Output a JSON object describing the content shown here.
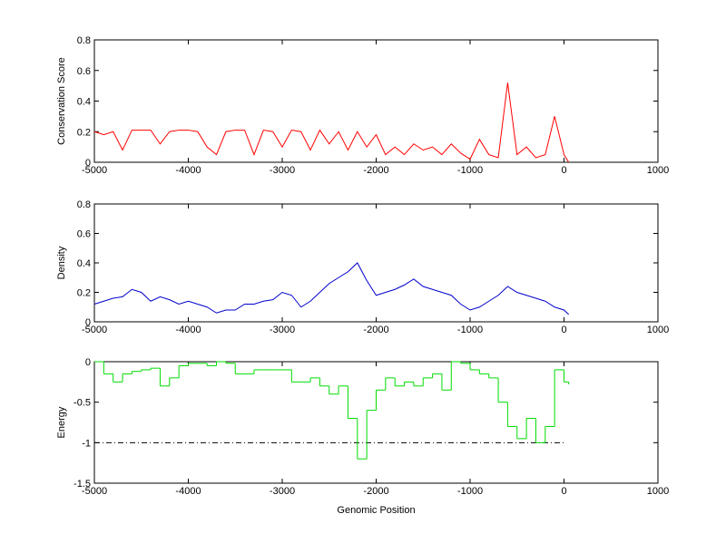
{
  "chart_data": [
    {
      "type": "line",
      "ylabel": "Conservation Score",
      "color": "#ff0000",
      "step": false,
      "x": [
        -5000,
        -4900,
        -4800,
        -4700,
        -4600,
        -4500,
        -4400,
        -4300,
        -4200,
        -4100,
        -4000,
        -3900,
        -3800,
        -3700,
        -3600,
        -3500,
        -3400,
        -3300,
        -3200,
        -3100,
        -3000,
        -2900,
        -2800,
        -2700,
        -2600,
        -2500,
        -2400,
        -2300,
        -2200,
        -2100,
        -2000,
        -1900,
        -1800,
        -1700,
        -1600,
        -1500,
        -1400,
        -1300,
        -1200,
        -1100,
        -1000,
        -900,
        -800,
        -700,
        -600,
        -500,
        -400,
        -300,
        -200,
        -100,
        0,
        50
      ],
      "values": [
        0.2,
        0.18,
        0.2,
        0.08,
        0.21,
        0.21,
        0.21,
        0.12,
        0.2,
        0.21,
        0.21,
        0.2,
        0.1,
        0.05,
        0.2,
        0.21,
        0.21,
        0.05,
        0.21,
        0.2,
        0.1,
        0.21,
        0.2,
        0.08,
        0.21,
        0.12,
        0.2,
        0.08,
        0.2,
        0.1,
        0.18,
        0.05,
        0.1,
        0.05,
        0.12,
        0.08,
        0.1,
        0.05,
        0.12,
        0.06,
        0.02,
        0.15,
        0.05,
        0.03,
        0.52,
        0.05,
        0.1,
        0.03,
        0.05,
        0.3,
        0.05,
        0
      ],
      "xlim": [
        -5000,
        1000
      ],
      "xticks": [
        -5000,
        -4000,
        -3000,
        -2000,
        -1000,
        0,
        1000
      ],
      "ylim": [
        0,
        0.8
      ],
      "yticks": [
        0,
        0.2,
        0.4,
        0.6,
        0.8
      ]
    },
    {
      "type": "line",
      "ylabel": "Density",
      "color": "#0000cc",
      "step": false,
      "x": [
        -5000,
        -4900,
        -4800,
        -4700,
        -4600,
        -4500,
        -4400,
        -4300,
        -4200,
        -4100,
        -4000,
        -3900,
        -3800,
        -3700,
        -3600,
        -3500,
        -3400,
        -3300,
        -3200,
        -3100,
        -3000,
        -2900,
        -2800,
        -2700,
        -2600,
        -2500,
        -2400,
        -2300,
        -2200,
        -2100,
        -2000,
        -1900,
        -1800,
        -1700,
        -1600,
        -1500,
        -1400,
        -1300,
        -1200,
        -1100,
        -1000,
        -900,
        -800,
        -700,
        -600,
        -500,
        -400,
        -300,
        -200,
        -100,
        0,
        50
      ],
      "values": [
        0.12,
        0.14,
        0.16,
        0.17,
        0.22,
        0.2,
        0.14,
        0.17,
        0.15,
        0.12,
        0.14,
        0.12,
        0.1,
        0.06,
        0.08,
        0.08,
        0.12,
        0.12,
        0.14,
        0.15,
        0.2,
        0.18,
        0.1,
        0.14,
        0.2,
        0.26,
        0.3,
        0.34,
        0.4,
        0.28,
        0.18,
        0.2,
        0.22,
        0.25,
        0.29,
        0.24,
        0.22,
        0.2,
        0.18,
        0.12,
        0.08,
        0.1,
        0.14,
        0.18,
        0.24,
        0.2,
        0.18,
        0.16,
        0.14,
        0.1,
        0.08,
        0.05
      ],
      "xlim": [
        -5000,
        1000
      ],
      "xticks": [
        -5000,
        -4000,
        -3000,
        -2000,
        -1000,
        0,
        1000
      ],
      "ylim": [
        0,
        0.8
      ],
      "yticks": [
        0,
        0.2,
        0.4,
        0.6,
        0.8
      ]
    },
    {
      "type": "line",
      "ylabel": "Energy",
      "xlabel": "Genomic Position",
      "color": "#00dd00",
      "step": true,
      "x": [
        -5000,
        -4900,
        -4800,
        -4700,
        -4600,
        -4500,
        -4400,
        -4300,
        -4200,
        -4100,
        -4000,
        -3900,
        -3800,
        -3700,
        -3600,
        -3500,
        -3400,
        -3300,
        -3200,
        -3100,
        -3000,
        -2900,
        -2800,
        -2700,
        -2600,
        -2500,
        -2400,
        -2300,
        -2200,
        -2100,
        -2000,
        -1900,
        -1800,
        -1700,
        -1600,
        -1500,
        -1400,
        -1300,
        -1200,
        -1100,
        -1000,
        -900,
        -800,
        -700,
        -600,
        -500,
        -400,
        -300,
        -200,
        -100,
        0,
        50
      ],
      "values": [
        0,
        -0.15,
        -0.25,
        -0.15,
        -0.12,
        -0.1,
        -0.08,
        -0.3,
        -0.2,
        -0.05,
        -0.02,
        -0.02,
        -0.05,
        0,
        -0.02,
        -0.15,
        -0.15,
        -0.1,
        -0.1,
        -0.1,
        -0.1,
        -0.25,
        -0.25,
        -0.2,
        -0.3,
        -0.4,
        -0.3,
        -0.7,
        -1.2,
        -0.6,
        -0.35,
        -0.2,
        -0.3,
        -0.25,
        -0.3,
        -0.2,
        -0.15,
        -0.35,
        0,
        -0.02,
        -0.1,
        -0.15,
        -0.2,
        -0.5,
        -0.8,
        -0.95,
        -0.7,
        -1,
        -0.8,
        -0.1,
        -0.25,
        -0.28
      ],
      "threshold": {
        "value": -1,
        "xrange": [
          -5000,
          0
        ]
      },
      "xlim": [
        -5000,
        1000
      ],
      "xticks": [
        -5000,
        -4000,
        -3000,
        -2000,
        -1000,
        0,
        1000
      ],
      "ylim": [
        -1.5,
        0
      ],
      "yticks": [
        -1.5,
        -1,
        -0.5,
        0
      ]
    }
  ]
}
